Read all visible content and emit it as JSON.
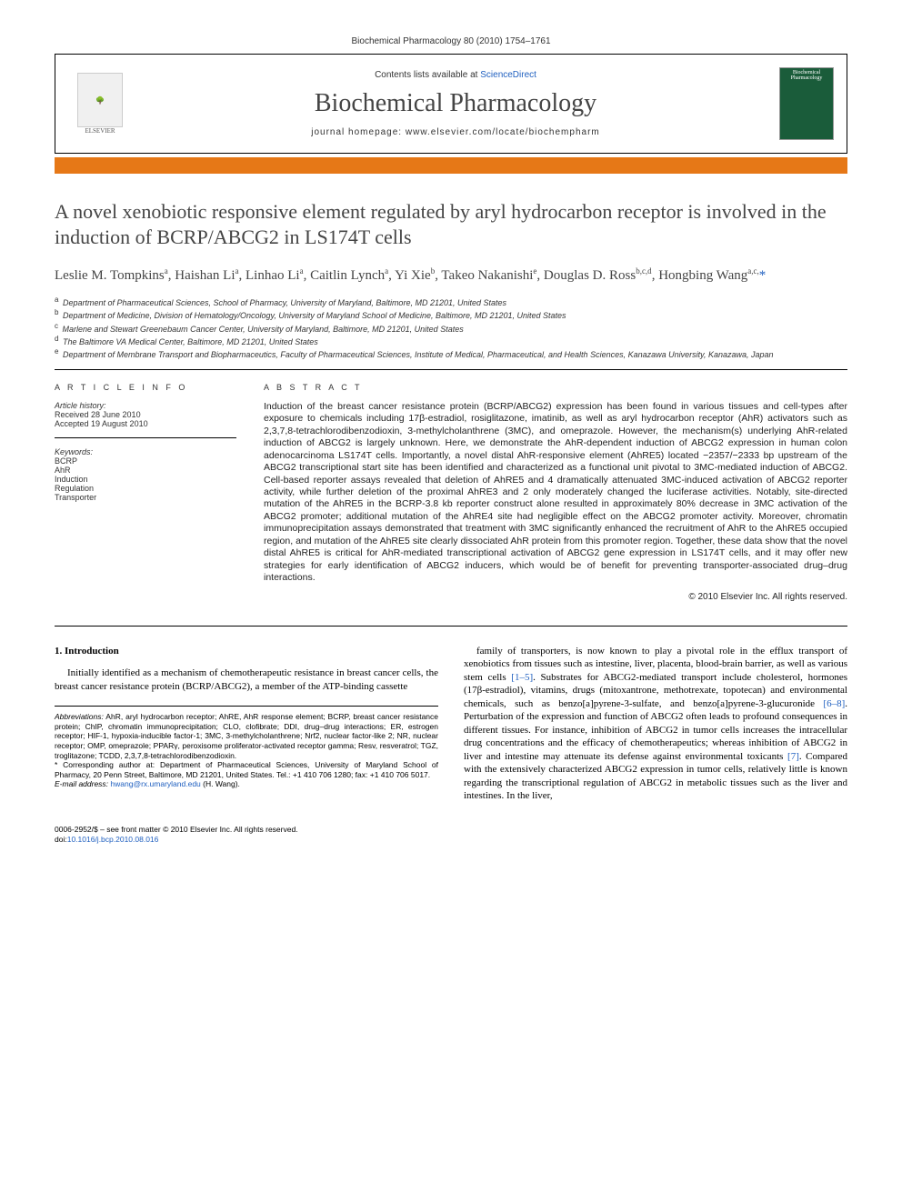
{
  "header": {
    "citation": "Biochemical Pharmacology 80 (2010) 1754–1761",
    "contents_prefix": "Contents lists available at ",
    "contents_link": "ScienceDirect",
    "journal_name": "Biochemical Pharmacology",
    "homepage_prefix": "journal homepage: ",
    "homepage_url": "www.elsevier.com/locate/biochempharm",
    "publisher_label": "ELSEVIER",
    "cover_label": "Biochemical Pharmacology"
  },
  "title": "A novel xenobiotic responsive element regulated by aryl hydrocarbon receptor is involved in the induction of BCRP/ABCG2 in LS174T cells",
  "authors_html": "Leslie M. Tompkins<sup>a</sup>, Haishan Li<sup>a</sup>, Linhao Li<sup>a</sup>, Caitlin Lynch<sup>a</sup>, Yi Xie<sup>b</sup>, Takeo Nakanishi<sup>e</sup>, Douglas D. Ross<sup>b,c,d</sup>, Hongbing Wang<sup>a,c,</sup><span class='ast'>*</span>",
  "affiliations": [
    {
      "sup": "a",
      "text": "Department of Pharmaceutical Sciences, School of Pharmacy, University of Maryland, Baltimore, MD 21201, United States"
    },
    {
      "sup": "b",
      "text": "Department of Medicine, Division of Hematology/Oncology, University of Maryland School of Medicine, Baltimore, MD 21201, United States"
    },
    {
      "sup": "c",
      "text": "Marlene and Stewart Greenebaum Cancer Center, University of Maryland, Baltimore, MD 21201, United States"
    },
    {
      "sup": "d",
      "text": "The Baltimore VA Medical Center, Baltimore, MD 21201, United States"
    },
    {
      "sup": "e",
      "text": "Department of Membrane Transport and Biopharmaceutics, Faculty of Pharmaceutical Sciences, Institute of Medical, Pharmaceutical, and Health Sciences, Kanazawa University, Kanazawa, Japan"
    }
  ],
  "article_info": {
    "head": "A R T I C L E  I N F O",
    "history_label": "Article history:",
    "received": "Received 28 June 2010",
    "accepted": "Accepted 19 August 2010",
    "keywords_label": "Keywords:",
    "keywords": [
      "BCRP",
      "AhR",
      "Induction",
      "Regulation",
      "Transporter"
    ]
  },
  "abstract": {
    "head": "A B S T R A C T",
    "text": "Induction of the breast cancer resistance protein (BCRP/ABCG2) expression has been found in various tissues and cell-types after exposure to chemicals including 17β-estradiol, rosiglitazone, imatinib, as well as aryl hydrocarbon receptor (AhR) activators such as 2,3,7,8-tetrachlorodibenzodioxin, 3-methylcholanthrene (3MC), and omeprazole. However, the mechanism(s) underlying AhR-related induction of ABCG2 is largely unknown. Here, we demonstrate the AhR-dependent induction of ABCG2 expression in human colon adenocarcinoma LS174T cells. Importantly, a novel distal AhR-responsive element (AhRE5) located −2357/−2333 bp upstream of the ABCG2 transcriptional start site has been identified and characterized as a functional unit pivotal to 3MC-mediated induction of ABCG2. Cell-based reporter assays revealed that deletion of AhRE5 and 4 dramatically attenuated 3MC-induced activation of ABCG2 reporter activity, while further deletion of the proximal AhRE3 and 2 only moderately changed the luciferase activities. Notably, site-directed mutation of the AhRE5 in the BCRP-3.8 kb reporter construct alone resulted in approximately 80% decrease in 3MC activation of the ABCG2 promoter; additional mutation of the AhRE4 site had negligible effect on the ABCG2 promoter activity. Moreover, chromatin immunoprecipitation assays demonstrated that treatment with 3MC significantly enhanced the recruitment of AhR to the AhRE5 occupied region, and mutation of the AhRE5 site clearly dissociated AhR protein from this promoter region. Together, these data show that the novel distal AhRE5 is critical for AhR-mediated transcriptional activation of ABCG2 gene expression in LS174T cells, and it may offer new strategies for early identification of ABCG2 inducers, which would be of benefit for preventing transporter-associated drug–drug interactions.",
    "copyright": "© 2010 Elsevier Inc. All rights reserved."
  },
  "intro": {
    "head": "1. Introduction",
    "para1": "Initially identified as a mechanism of chemotherapeutic resistance in breast cancer cells, the breast cancer resistance protein (BCRP/ABCG2), a member of the ATP-binding cassette",
    "para2_pre": "family of transporters, is now known to play a pivotal role in the efflux transport of xenobiotics from tissues such as intestine, liver, placenta, blood-brain barrier, as well as various stem cells ",
    "ref1": "[1–5]",
    "para2_mid": ". Substrates for ABCG2-mediated transport include cholesterol, hormones (17β-estradiol), vitamins, drugs (mitoxantrone, methotrexate, topotecan) and environmental chemicals, such as benzo[a]pyrene-3-sulfate, and benzo[a]pyrene-3-glucuronide ",
    "ref2": "[6–8]",
    "para2_mid2": ". Perturbation of the expression and function of ABCG2 often leads to profound consequences in different tissues. For instance, inhibition of ABCG2 in tumor cells increases the intracellular drug concentrations and the efficacy of chemotherapeutics; whereas inhibition of ABCG2 in liver and intestine may attenuate its defense against environmental toxicants ",
    "ref3": "[7]",
    "para2_end": ". Compared with the extensively characterized ABCG2 expression in tumor cells, relatively little is known regarding the transcriptional regulation of ABCG2 in metabolic tissues such as the liver and intestines. In the liver,"
  },
  "footnotes": {
    "abbr_label": "Abbreviations:",
    "abbr_text": " AhR, aryl hydrocarbon receptor; AhRE, AhR response element; BCRP, breast cancer resistance protein; ChIP, chromatin immunoprecipitation; CLO, clofibrate; DDI, drug–drug interactions; ER, estrogen receptor; HIF-1, hypoxia-inducible factor-1; 3MC, 3-methylcholanthrene; Nrf2, nuclear factor-like 2; NR, nuclear receptor; OMP, omeprazole; PPARγ, peroxisome proliferator-activated receptor gamma; Resv, resveratrol; TGZ, troglitazone; TCDD, 2,3,7,8-tetrachlorodibenzodioxin.",
    "corr_marker": "* ",
    "corr_text": "Corresponding author at: Department of Pharmaceutical Sciences, University of Maryland School of Pharmacy, 20 Penn Street, Baltimore, MD 21201, United States. Tel.: +1 410 706 1280; fax: +1 410 706 5017.",
    "email_label": "E-mail address: ",
    "email": "hwang@rx.umaryland.edu",
    "email_suffix": " (H. Wang)."
  },
  "footer": {
    "line1": "0006-2952/$ – see front matter © 2010 Elsevier Inc. All rights reserved.",
    "doi_prefix": "doi:",
    "doi": "10.1016/j.bcp.2010.08.016"
  },
  "colors": {
    "orange": "#e67817",
    "link": "#2060c0",
    "cover_green": "#1a5c3a"
  }
}
